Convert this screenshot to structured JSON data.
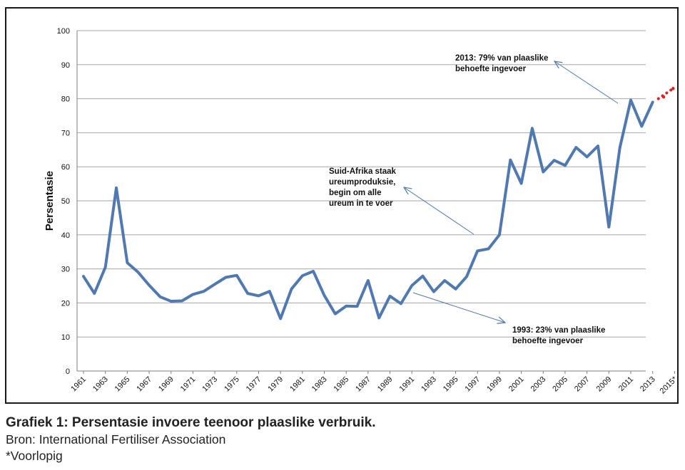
{
  "chart_data": {
    "type": "line",
    "ylabel": "Persentasie",
    "ylim": [
      0,
      100
    ],
    "yticks": [
      "0",
      "10",
      "20",
      "30",
      "40",
      "50",
      "60",
      "70",
      "80",
      "90",
      "100"
    ],
    "xtick_labels": [
      "1961",
      "1963",
      "1965",
      "1967",
      "1969",
      "1971",
      "1973",
      "1975",
      "1977",
      "1979",
      "1981",
      "1983",
      "1985",
      "1987",
      "1989",
      "1991",
      "1993",
      "1995",
      "1997",
      "1999",
      "2001",
      "2003",
      "2005",
      "2007",
      "2009",
      "2011",
      "2013",
      "2015*"
    ],
    "grid": "horizontal",
    "series": [
      {
        "color": "#4f79b0",
        "x": [
          1961,
          1962,
          1963,
          1964,
          1965,
          1966,
          1967,
          1968,
          1969,
          1970,
          1971,
          1972,
          1973,
          1974,
          1975,
          1976,
          1977,
          1978,
          1979,
          1980,
          1981,
          1982,
          1983,
          1984,
          1985,
          1986,
          1987,
          1988,
          1989,
          1990,
          1991,
          1992,
          1993,
          1994,
          1995,
          1996,
          1997,
          1998,
          1999,
          2000,
          2001,
          2002,
          2003,
          2004,
          2005,
          2006,
          2007,
          2008,
          2009,
          2010,
          2011,
          2012,
          2013
        ],
        "values": [
          27.8,
          22.8,
          30.5,
          53.8,
          31.8,
          29,
          25.2,
          21.8,
          20.5,
          20.6,
          22.5,
          23.4,
          25.5,
          27.5,
          28.1,
          22.8,
          22.1,
          23.4,
          15.4,
          24.1,
          28,
          29.3,
          22.2,
          16.8,
          19.1,
          19,
          26.6,
          15.6,
          22,
          19.8,
          25.1,
          27.9,
          23.3,
          26.6,
          24.1,
          27.7,
          35.3,
          35.9,
          40,
          62,
          55.1,
          71.3,
          58.5,
          61.9,
          60.4,
          65.7,
          62.9,
          66.1,
          42.3,
          65.6,
          79.6,
          71.9,
          79
        ]
      },
      {
        "style": "dotted",
        "color": "#e02020",
        "x": [
          2014,
          2015
        ],
        "values": [
          80.5,
          83
        ]
      }
    ],
    "annotations": [
      {
        "lines": [
          "2013: 79% van plaaslike",
          "behoefte ingevoer"
        ],
        "points_to": {
          "x": 2013,
          "y": 79
        }
      },
      {
        "lines": [
          "Suid-Afrika staak",
          "ureumproduksie,",
          "begin om alle",
          "ureum in te voer"
        ],
        "points_to": {
          "x": 1999,
          "y": 40
        }
      },
      {
        "lines": [
          "1993: 23% van plaaslike",
          "behoefte ingevoer"
        ],
        "points_to": {
          "x": 1993,
          "y": 23
        }
      }
    ]
  },
  "caption": {
    "title": "Grafiek 1: Persentasie invoere teenoor plaaslike verbruik.",
    "source": "Bron: International Fertiliser Association",
    "note": "*Voorlopig"
  }
}
